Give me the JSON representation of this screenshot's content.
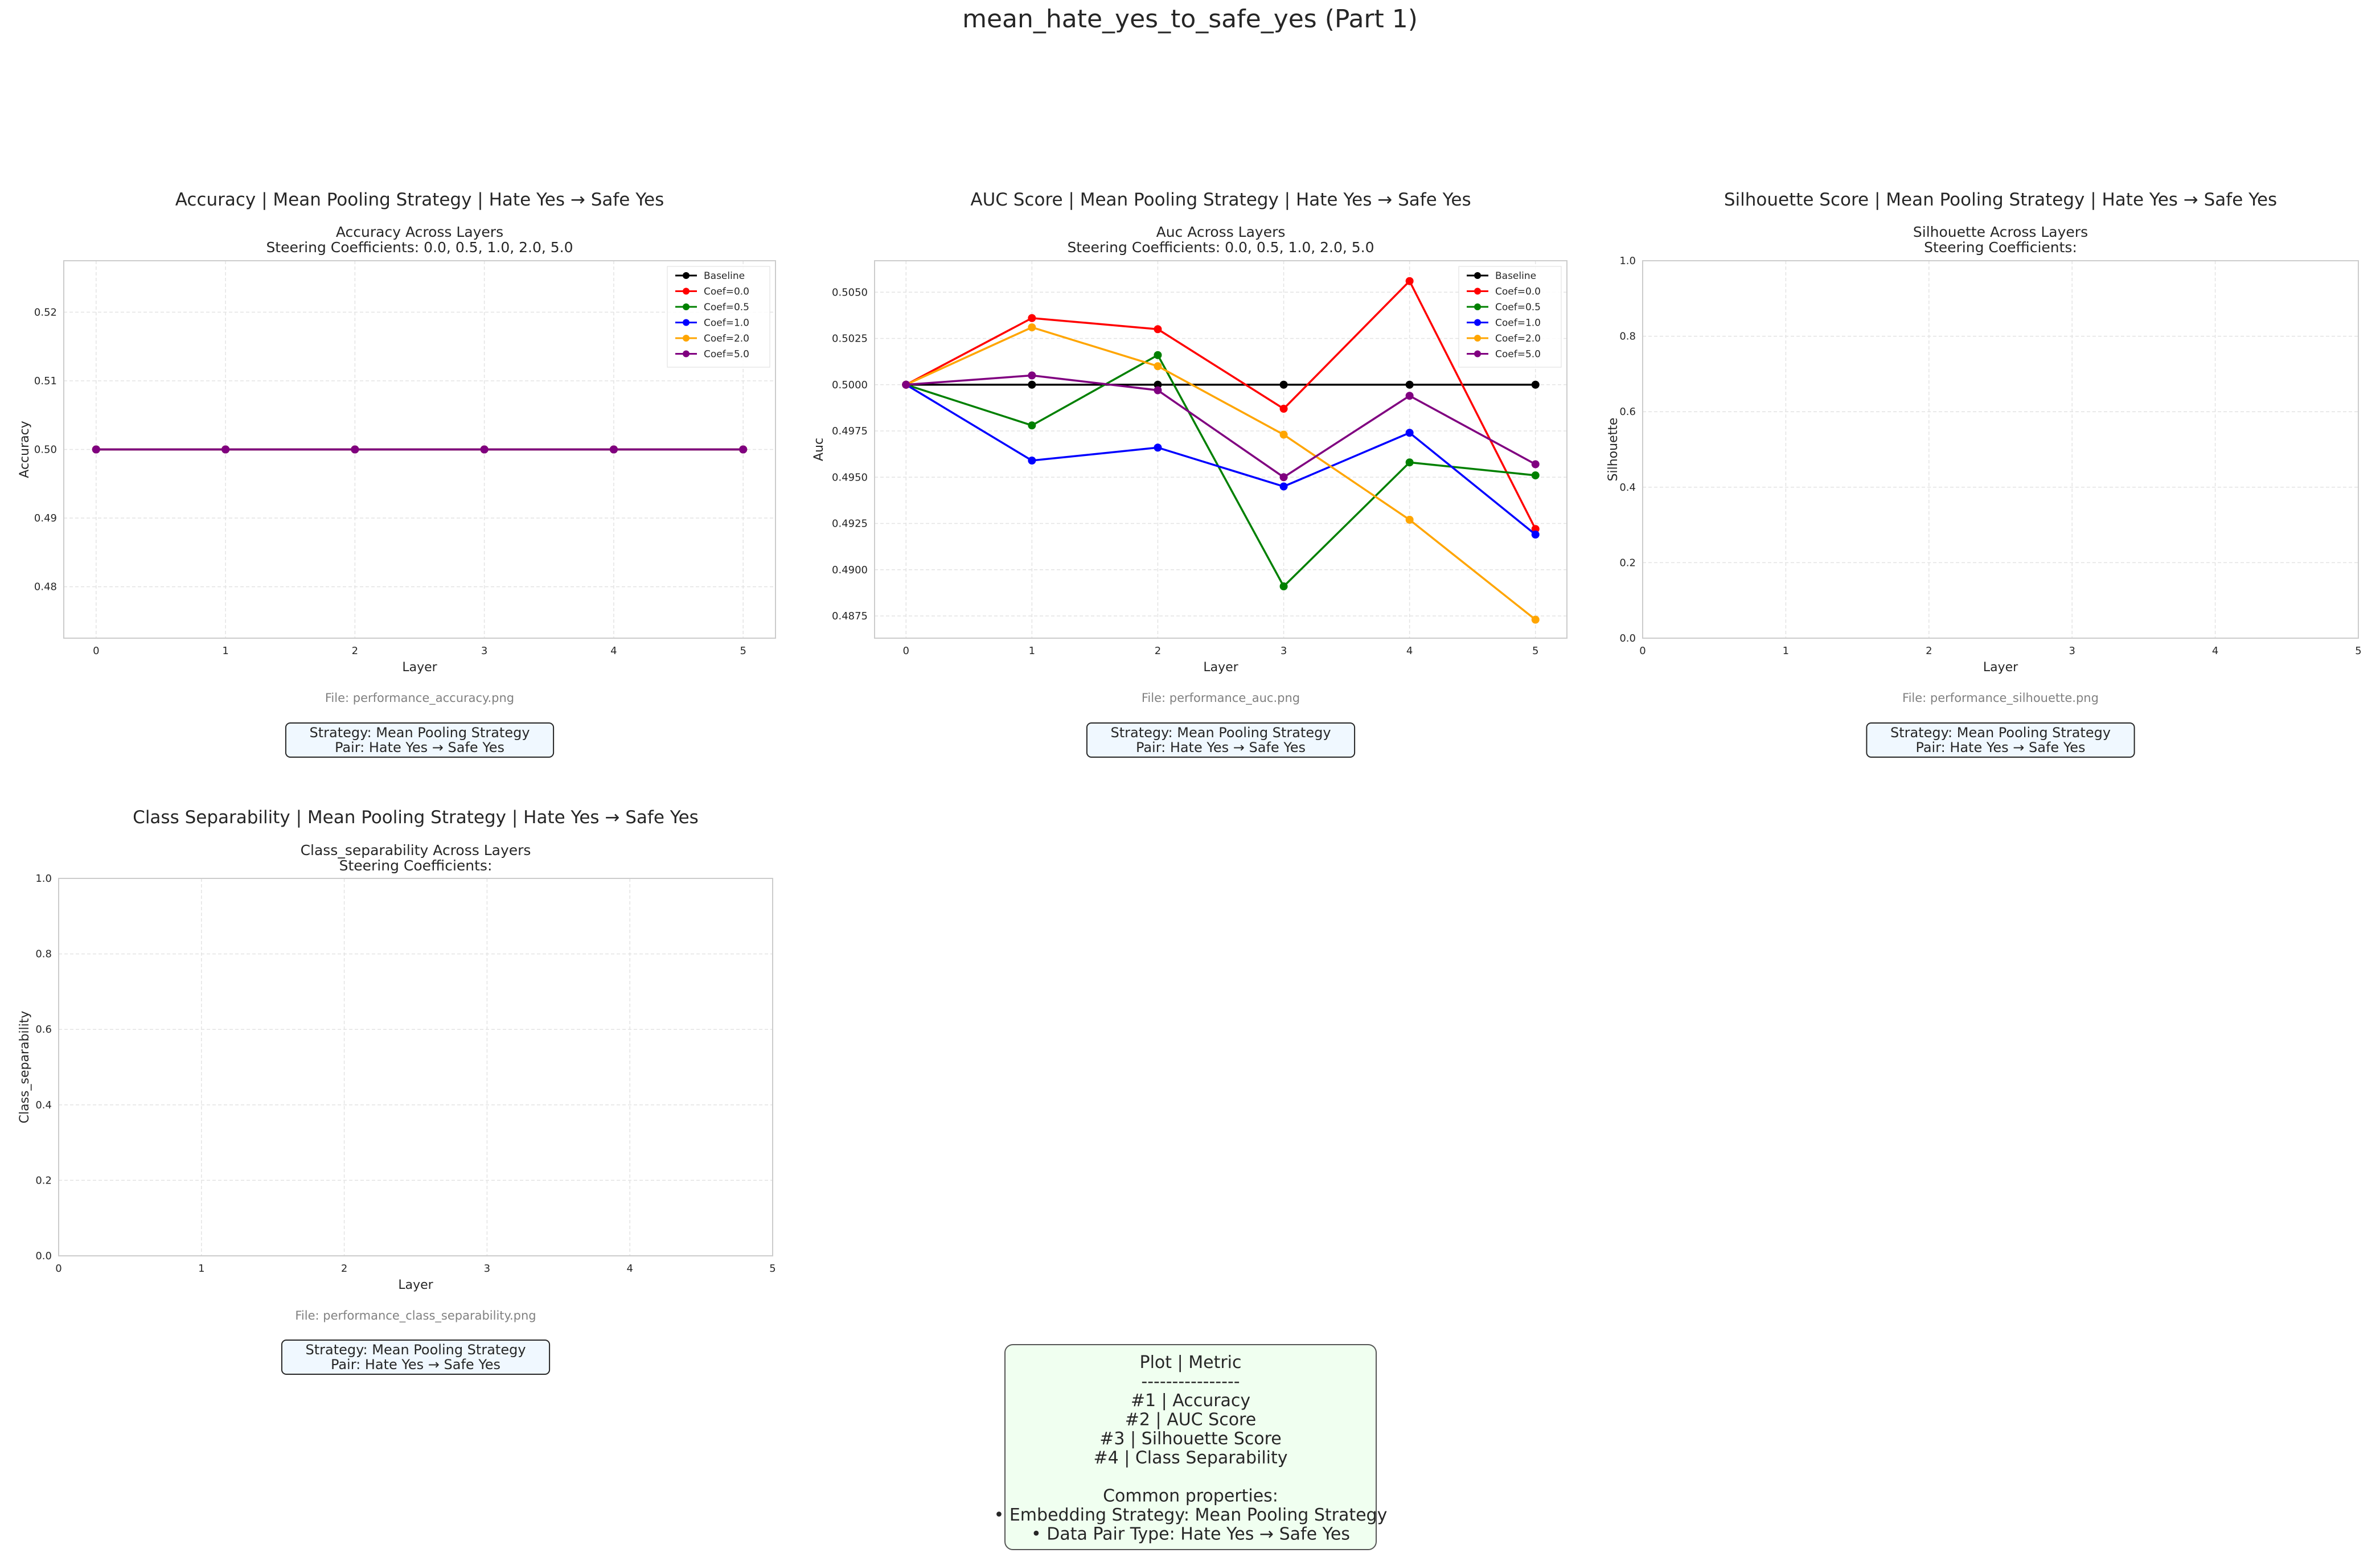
{
  "figure": {
    "suptitle": "mean_hate_yes_to_safe_yes (Part 1)"
  },
  "colors": {
    "Baseline": "#000000",
    "Coef=0.0": "#ff0000",
    "Coef=0.5": "#008000",
    "Coef=1.0": "#0000ff",
    "Coef=2.0": "#ffa500",
    "Coef=5.0": "#800080",
    "grid": "#e3e3e3",
    "axes_edge": "#cccccc",
    "file_text": "#808080",
    "caption_bg": "#f0f8ff",
    "summary_bg": "#f0fff0"
  },
  "chart_data": [
    {
      "type": "line",
      "panel_title": "Accuracy | Mean Pooling Strategy | Hate Yes → Safe Yes",
      "title_line1": "Accuracy Across Layers",
      "title_line2": "Steering Coefficients: 0.0, 0.5, 1.0, 2.0, 5.0",
      "xlabel": "Layer",
      "ylabel": "Accuracy",
      "x": [
        0,
        1,
        2,
        3,
        4,
        5
      ],
      "xticks": [
        "0",
        "1",
        "2",
        "3",
        "4",
        "5"
      ],
      "xlim": [
        -0.25,
        5.25
      ],
      "ylim": [
        0.4725,
        0.5275
      ],
      "yticks": [
        "0.48",
        "0.49",
        "0.50",
        "0.51",
        "0.52"
      ],
      "ytick_values": [
        0.48,
        0.49,
        0.5,
        0.51,
        0.52
      ],
      "grid": true,
      "legend": "top-right",
      "series": [
        {
          "name": "Baseline",
          "values": [
            0.5,
            0.5,
            0.5,
            0.5,
            0.5,
            0.5
          ]
        },
        {
          "name": "Coef=0.0",
          "values": [
            0.5,
            0.5,
            0.5,
            0.5,
            0.5,
            0.5
          ]
        },
        {
          "name": "Coef=0.5",
          "values": [
            0.5,
            0.5,
            0.5,
            0.5,
            0.5,
            0.5
          ]
        },
        {
          "name": "Coef=1.0",
          "values": [
            0.5,
            0.5,
            0.5,
            0.5,
            0.5,
            0.5
          ]
        },
        {
          "name": "Coef=2.0",
          "values": [
            0.5,
            0.5,
            0.5,
            0.5,
            0.5,
            0.5
          ]
        },
        {
          "name": "Coef=5.0",
          "values": [
            0.5,
            0.5,
            0.5,
            0.5,
            0.5,
            0.5
          ]
        }
      ],
      "file_label": "File: performance_accuracy.png",
      "caption_line1": "Strategy: Mean Pooling Strategy",
      "caption_line2": "Pair: Hate Yes → Safe Yes"
    },
    {
      "type": "line",
      "panel_title": "AUC Score | Mean Pooling Strategy | Hate Yes → Safe Yes",
      "title_line1": "Auc Across Layers",
      "title_line2": "Steering Coefficients: 0.0, 0.5, 1.0, 2.0, 5.0",
      "xlabel": "Layer",
      "ylabel": "Auc",
      "x": [
        0,
        1,
        2,
        3,
        4,
        5
      ],
      "xticks": [
        "0",
        "1",
        "2",
        "3",
        "4",
        "5"
      ],
      "xlim": [
        -0.25,
        5.25
      ],
      "ylim": [
        0.4863,
        0.5067
      ],
      "yticks": [
        "0.4875",
        "0.4900",
        "0.4925",
        "0.4950",
        "0.4975",
        "0.5000",
        "0.5025",
        "0.5050"
      ],
      "ytick_values": [
        0.4875,
        0.49,
        0.4925,
        0.495,
        0.4975,
        0.5,
        0.5025,
        0.505
      ],
      "grid": true,
      "legend": "top-right",
      "series": [
        {
          "name": "Baseline",
          "values": [
            0.5,
            0.5,
            0.5,
            0.5,
            0.5,
            0.5
          ]
        },
        {
          "name": "Coef=0.0",
          "values": [
            0.5,
            0.5036,
            0.503,
            0.4987,
            0.5056,
            0.4922
          ]
        },
        {
          "name": "Coef=0.5",
          "values": [
            0.5,
            0.4978,
            0.5016,
            0.4891,
            0.4958,
            0.4951
          ]
        },
        {
          "name": "Coef=1.0",
          "values": [
            0.5,
            0.4959,
            0.4966,
            0.4945,
            0.4974,
            0.4919
          ]
        },
        {
          "name": "Coef=2.0",
          "values": [
            0.5,
            0.5031,
            0.501,
            0.4973,
            0.4927,
            0.4873
          ]
        },
        {
          "name": "Coef=5.0",
          "values": [
            0.5,
            0.5005,
            0.4997,
            0.495,
            0.4994,
            0.4957
          ]
        }
      ],
      "file_label": "File: performance_auc.png",
      "caption_line1": "Strategy: Mean Pooling Strategy",
      "caption_line2": "Pair: Hate Yes → Safe Yes"
    },
    {
      "type": "line",
      "panel_title": "Silhouette Score | Mean Pooling Strategy | Hate Yes → Safe Yes",
      "title_line1": "Silhouette Across Layers",
      "title_line2": "Steering Coefficients:",
      "xlabel": "Layer",
      "ylabel": "Silhouette",
      "x": [],
      "xticks": [
        "0",
        "1",
        "2",
        "3",
        "4",
        "5"
      ],
      "xtick_values": [
        0,
        1,
        2,
        3,
        4,
        5
      ],
      "xlim": [
        0,
        5
      ],
      "ylim": [
        0,
        1
      ],
      "yticks": [
        "0.0",
        "0.2",
        "0.4",
        "0.6",
        "0.8",
        "1.0"
      ],
      "ytick_values": [
        0,
        0.2,
        0.4,
        0.6,
        0.8,
        1.0
      ],
      "grid": true,
      "series": [],
      "file_label": "File: performance_silhouette.png",
      "caption_line1": "Strategy: Mean Pooling Strategy",
      "caption_line2": "Pair: Hate Yes → Safe Yes"
    },
    {
      "type": "line",
      "panel_title": "Class Separability | Mean Pooling Strategy | Hate Yes → Safe Yes",
      "title_line1": "Class_separability Across Layers",
      "title_line2": "Steering Coefficients:",
      "xlabel": "Layer",
      "ylabel": "Class_separability",
      "x": [],
      "xticks": [
        "0",
        "1",
        "2",
        "3",
        "4",
        "5"
      ],
      "xtick_values": [
        0,
        1,
        2,
        3,
        4,
        5
      ],
      "xlim": [
        0,
        5
      ],
      "ylim": [
        0,
        1
      ],
      "yticks": [
        "0.0",
        "0.2",
        "0.4",
        "0.6",
        "0.8",
        "1.0"
      ],
      "ytick_values": [
        0,
        0.2,
        0.4,
        0.6,
        0.8,
        1.0
      ],
      "grid": true,
      "series": [],
      "file_label": "File: performance_class_separability.png",
      "caption_line1": "Strategy: Mean Pooling Strategy",
      "caption_line2": "Pair: Hate Yes → Safe Yes"
    }
  ],
  "summary": {
    "lines": [
      "Plot | Metric",
      "----------------",
      "#1 | Accuracy",
      "#2 | AUC Score",
      "#3 | Silhouette Score",
      "#4 | Class Separability",
      "",
      "Common properties:",
      "• Embedding Strategy: Mean Pooling Strategy",
      "• Data Pair Type: Hate Yes → Safe Yes"
    ]
  }
}
